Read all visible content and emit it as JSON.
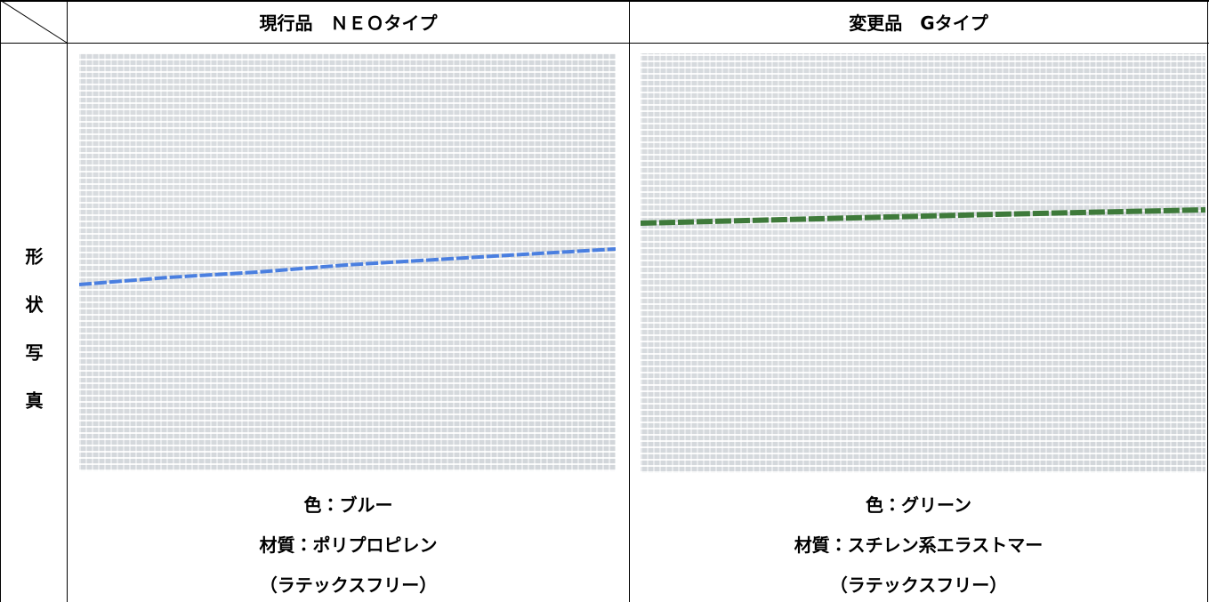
{
  "table": {
    "header": [
      "現行品　ＮＥＯタイプ",
      "変更品　Gタイプ"
    ],
    "row_label": "形状写真",
    "cells": [
      [
        "色：ブルー",
        "材質：ポリプロピレン",
        "（ラテックスフリー）"
      ],
      [
        "色：グリーン",
        "材質：スチレン系エラストマー",
        "（ラテックスフリー）"
      ]
    ]
  }
}
